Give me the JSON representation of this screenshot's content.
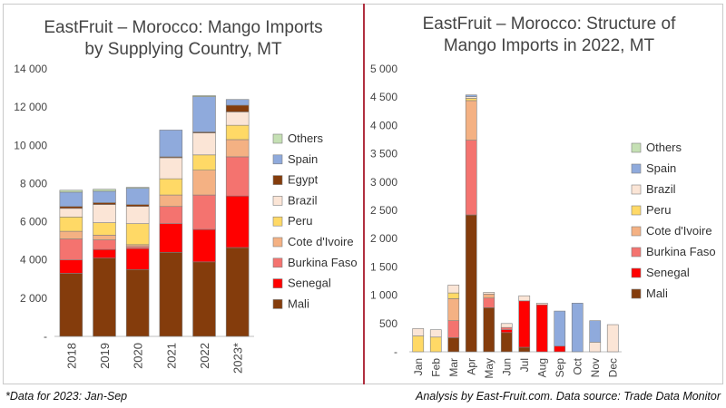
{
  "chart_data": [
    {
      "type": "bar",
      "stacked": true,
      "title_line1": "EastFruit – Morocco: Mango Imports",
      "title_line2": "by Supplying Country, MT",
      "xlabel": "",
      "ylabel": "",
      "ylim": [
        0,
        14000
      ],
      "y_ticks": [
        0,
        2000,
        4000,
        6000,
        8000,
        10000,
        12000,
        14000
      ],
      "y_tick_labels": [
        "-",
        "2 000",
        "4 000",
        "6 000",
        "8 000",
        "10 000",
        "12 000",
        "14 000"
      ],
      "categories": [
        "2018",
        "2019",
        "2020",
        "2021",
        "2022",
        "2023*"
      ],
      "legend_position": "right",
      "legend_order": [
        "Others",
        "Spain",
        "Egypt",
        "Brazil",
        "Peru",
        "Cote d'Ivoire",
        "Burkina Faso",
        "Senegal",
        "Mali"
      ],
      "series": [
        {
          "name": "Mali",
          "color": "#843c0c",
          "values": [
            3300,
            4100,
            3500,
            4400,
            3900,
            4650
          ]
        },
        {
          "name": "Senegal",
          "color": "#ff0000",
          "values": [
            700,
            450,
            1100,
            1500,
            1700,
            2700
          ]
        },
        {
          "name": "Burkina Faso",
          "color": "#f4736f",
          "values": [
            1100,
            500,
            100,
            900,
            1800,
            2050
          ]
        },
        {
          "name": "Cote d'Ivoire",
          "color": "#f4b183",
          "values": [
            400,
            250,
            100,
            600,
            1300,
            900
          ]
        },
        {
          "name": "Peru",
          "color": "#ffd966",
          "values": [
            750,
            650,
            1100,
            850,
            800,
            750
          ]
        },
        {
          "name": "Brazil",
          "color": "#fbe5d6",
          "values": [
            450,
            950,
            900,
            1100,
            1150,
            700
          ]
        },
        {
          "name": "Egypt",
          "color": "#843c0c",
          "values": [
            100,
            100,
            100,
            50,
            50,
            350
          ]
        },
        {
          "name": "Spain",
          "color": "#8faadc",
          "values": [
            750,
            600,
            850,
            1400,
            1850,
            300
          ]
        },
        {
          "name": "Others",
          "color": "#c5e0b4",
          "values": [
            100,
            100,
            50,
            0,
            50,
            0
          ]
        }
      ]
    },
    {
      "type": "bar",
      "stacked": true,
      "title_line1": "EastFruit – Morocco: Structure of",
      "title_line2": "Mango Imports in 2022, MT",
      "xlabel": "",
      "ylabel": "",
      "ylim": [
        0,
        5000
      ],
      "y_ticks": [
        0,
        500,
        1000,
        1500,
        2000,
        2500,
        3000,
        3500,
        4000,
        4500,
        5000
      ],
      "y_tick_labels": [
        "-",
        "500",
        "1 000",
        "1 500",
        "2 000",
        "2 500",
        "3 000",
        "3 500",
        "4 000",
        "4 500",
        "5 000"
      ],
      "categories": [
        "Jan",
        "Feb",
        "Mar",
        "Apr",
        "May",
        "Jun",
        "Jul",
        "Aug",
        "Sep",
        "Oct",
        "Nov",
        "Dec"
      ],
      "legend_position": "right",
      "legend_order": [
        "Others",
        "Spain",
        "Brazil",
        "Peru",
        "Cote d'Ivoire",
        "Burkina Faso",
        "Senegal",
        "Mali"
      ],
      "series": [
        {
          "name": "Mali",
          "color": "#843c0c",
          "values": [
            0,
            0,
            250,
            2420,
            780,
            340,
            80,
            0,
            0,
            0,
            0,
            0
          ]
        },
        {
          "name": "Senegal",
          "color": "#ff0000",
          "values": [
            0,
            0,
            0,
            0,
            0,
            50,
            820,
            830,
            100,
            0,
            0,
            0
          ]
        },
        {
          "name": "Burkina Faso",
          "color": "#f4736f",
          "values": [
            0,
            0,
            300,
            1320,
            170,
            40,
            0,
            0,
            0,
            0,
            0,
            0
          ]
        },
        {
          "name": "Cote d'Ivoire",
          "color": "#f4b183",
          "values": [
            0,
            0,
            390,
            700,
            70,
            0,
            0,
            0,
            0,
            0,
            0,
            0
          ]
        },
        {
          "name": "Peru",
          "color": "#ffd966",
          "values": [
            280,
            260,
            100,
            40,
            0,
            0,
            0,
            0,
            0,
            0,
            0,
            0
          ]
        },
        {
          "name": "Brazil",
          "color": "#fbe5d6",
          "values": [
            130,
            130,
            140,
            30,
            30,
            70,
            90,
            30,
            0,
            0,
            170,
            480
          ]
        },
        {
          "name": "Spain",
          "color": "#8faadc",
          "values": [
            0,
            0,
            0,
            30,
            0,
            0,
            0,
            0,
            620,
            860,
            380,
            0
          ]
        },
        {
          "name": "Others",
          "color": "#c5e0b4",
          "values": [
            0,
            0,
            0,
            0,
            0,
            0,
            0,
            0,
            0,
            0,
            0,
            0
          ]
        }
      ]
    }
  ],
  "footnote": "*Data for 2023: Jan-Sep",
  "source": "Analysis by East-Fruit.com. Data source: Trade Data Monitor",
  "colors": {
    "divider": "#b03040",
    "axis": "#bfbfbf",
    "bar_edge": "#7f7f7f"
  }
}
